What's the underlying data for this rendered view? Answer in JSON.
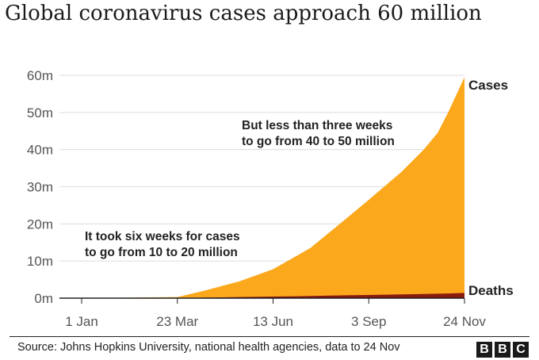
{
  "title": "Global coronavirus cases approach 60 million",
  "source": "Source: Johns Hopkins University, national health agencies, data to 24 Nov",
  "logo_text": [
    "B",
    "B",
    "C"
  ],
  "colors": {
    "cases": "#fca81d",
    "deaths": "#8b1a10",
    "grid": "#dddddd",
    "axis": "#222222",
    "text": "#222222"
  },
  "chart_data": {
    "type": "area",
    "x_ticks": [
      "1 Jan",
      "23 Mar",
      "13 Jun",
      "3 Sep",
      "24 Nov"
    ],
    "y_ticks": [
      "0m",
      "10m",
      "20m",
      "30m",
      "40m",
      "50m",
      "60m"
    ],
    "ylim": [
      0,
      60
    ],
    "yunit": "million",
    "grid": true,
    "x": [
      "1 Jan",
      "23 Mar",
      "15 Apr",
      "15 May",
      "13 Jun",
      "15 Jul",
      "15 Aug",
      "3 Sep",
      "1 Oct",
      "20 Oct",
      "1 Nov",
      "10 Nov",
      "24 Nov"
    ],
    "series": [
      {
        "name": "Cases",
        "values": [
          0,
          0.3,
          2.0,
          4.5,
          7.8,
          13.5,
          21.5,
          26.5,
          34.0,
          40.0,
          44.5,
          50.0,
          59.5
        ]
      },
      {
        "name": "Deaths",
        "values": [
          0,
          0.02,
          0.13,
          0.3,
          0.43,
          0.58,
          0.77,
          0.86,
          1.01,
          1.12,
          1.2,
          1.27,
          1.4
        ]
      }
    ],
    "annotations": [
      {
        "lines": [
          "But less than three weeks",
          "to go from 40 to 50 million"
        ]
      },
      {
        "lines": [
          "It took six weeks for cases",
          "to go from 10 to 20 million"
        ]
      }
    ]
  }
}
